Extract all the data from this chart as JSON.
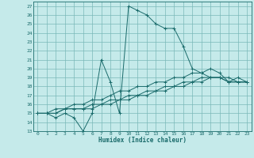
{
  "xlabel": "Humidex (Indice chaleur)",
  "bg_color": "#c5eaea",
  "grid_color": "#7ab8b8",
  "line_color": "#1a6b6b",
  "xlim": [
    -0.5,
    23.5
  ],
  "ylim": [
    13,
    27.5
  ],
  "xticks": [
    0,
    1,
    2,
    3,
    4,
    5,
    6,
    7,
    8,
    9,
    10,
    11,
    12,
    13,
    14,
    15,
    16,
    17,
    18,
    19,
    20,
    21,
    22,
    23
  ],
  "yticks": [
    13,
    14,
    15,
    16,
    17,
    18,
    19,
    20,
    21,
    22,
    23,
    24,
    25,
    26,
    27
  ],
  "series": [
    [
      15.0,
      15.0,
      14.5,
      15.0,
      14.5,
      13.0,
      15.0,
      21.0,
      18.5,
      15.0,
      27.0,
      26.5,
      26.0,
      25.0,
      24.5,
      24.5,
      22.5,
      20.0,
      19.5,
      19.0,
      19.0,
      18.5,
      19.0,
      18.5
    ],
    [
      15.0,
      15.0,
      15.0,
      15.5,
      15.5,
      15.5,
      15.5,
      16.0,
      16.0,
      16.5,
      16.5,
      17.0,
      17.0,
      17.5,
      17.5,
      18.0,
      18.0,
      18.5,
      18.5,
      19.0,
      19.0,
      19.0,
      18.5,
      18.5
    ],
    [
      15.0,
      15.0,
      15.0,
      15.5,
      15.5,
      15.5,
      16.0,
      16.0,
      16.5,
      16.5,
      17.0,
      17.0,
      17.5,
      17.5,
      18.0,
      18.0,
      18.5,
      18.5,
      19.0,
      19.0,
      19.0,
      18.5,
      18.5,
      18.5
    ],
    [
      15.0,
      15.0,
      15.5,
      15.5,
      16.0,
      16.0,
      16.5,
      16.5,
      17.0,
      17.5,
      17.5,
      18.0,
      18.0,
      18.5,
      18.5,
      19.0,
      19.0,
      19.5,
      19.5,
      20.0,
      19.5,
      18.5,
      18.5,
      18.5
    ]
  ]
}
